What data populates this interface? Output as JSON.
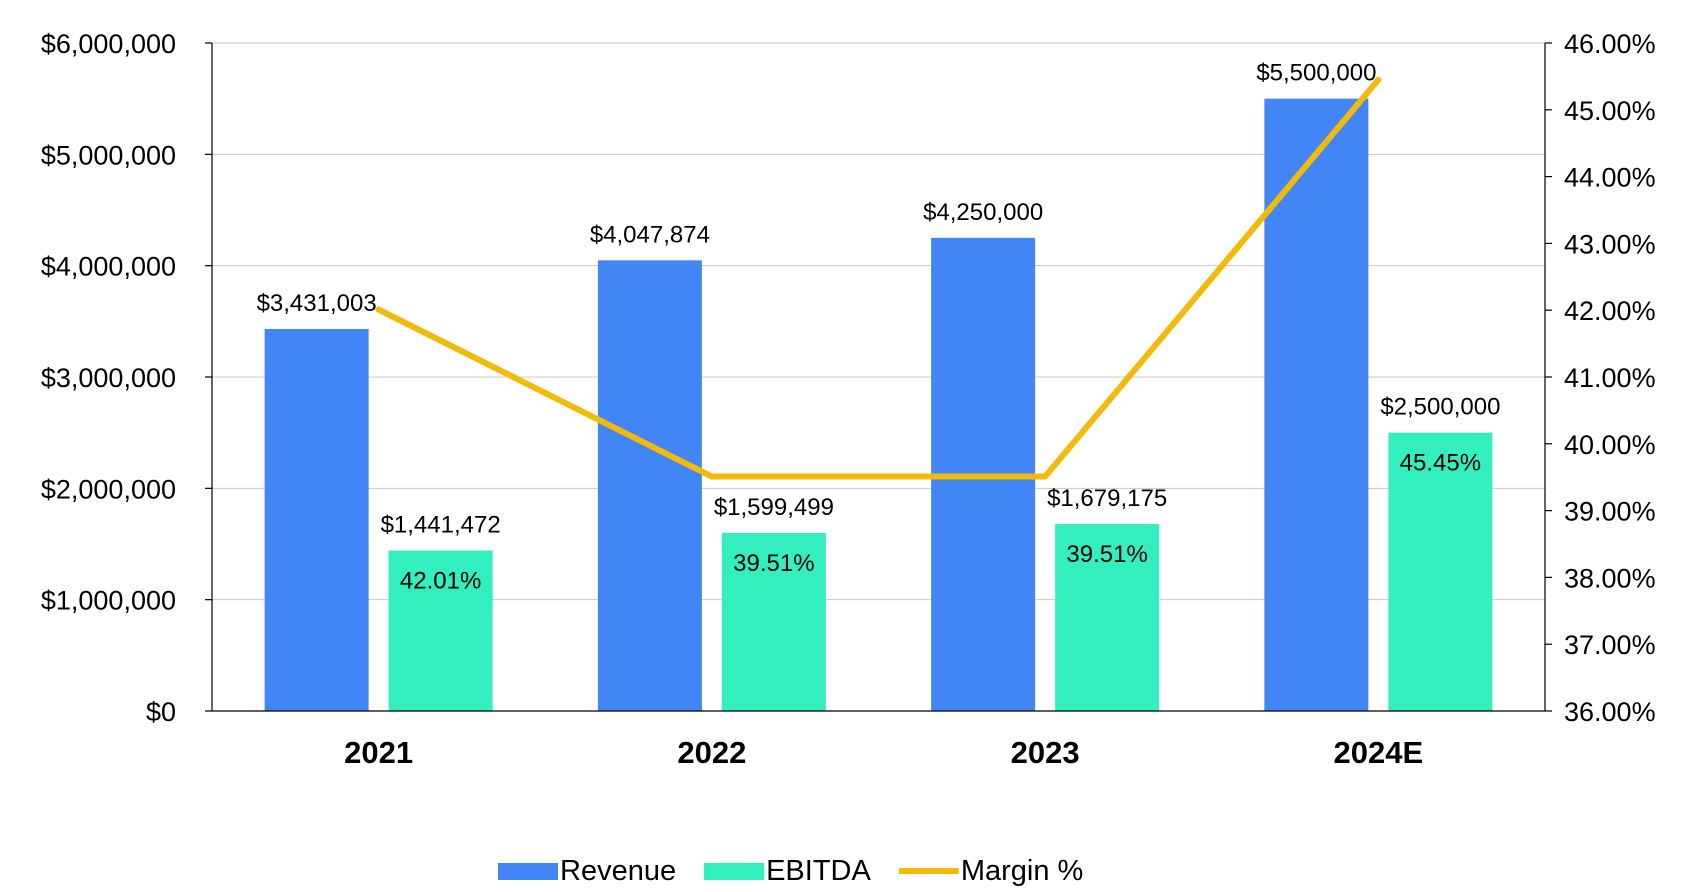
{
  "chart_data": {
    "type": "bar",
    "categories": [
      "2021",
      "2022",
      "2023",
      "2024E"
    ],
    "series": [
      {
        "name": "Revenue",
        "type": "bar",
        "axis": "left",
        "color": "#4285F4",
        "values": [
          3431003,
          4047874,
          4250000,
          5500000
        ],
        "labels": [
          "$3,431,003",
          "$4,047,874",
          "$4,250,000",
          "$5,500,000"
        ]
      },
      {
        "name": "EBITDA",
        "type": "bar",
        "axis": "left",
        "color": "#33EFC0",
        "values": [
          1441472,
          1599499,
          1679175,
          2500000
        ],
        "labels": [
          "$1,441,472",
          "$1,599,499",
          "$1,679,175",
          "$2,500,000"
        ]
      },
      {
        "name": "Margin %",
        "type": "line",
        "axis": "right",
        "color": "#F4BA0A",
        "values": [
          42.01,
          39.51,
          39.51,
          45.45
        ],
        "labels": [
          "42.01%",
          "39.51%",
          "39.51%",
          "45.45%"
        ]
      }
    ],
    "y_left": {
      "min": 0,
      "max": 6000000,
      "ticks": [
        {
          "value": 0,
          "label": "$0"
        },
        {
          "value": 1000000,
          "label": "$1,000,000"
        },
        {
          "value": 2000000,
          "label": "$2,000,000"
        },
        {
          "value": 3000000,
          "label": "$3,000,000"
        },
        {
          "value": 4000000,
          "label": "$4,000,000"
        },
        {
          "value": 5000000,
          "label": "$5,000,000"
        },
        {
          "value": 6000000,
          "label": "$6,000,000"
        }
      ]
    },
    "y_right": {
      "min": 36,
      "max": 46,
      "ticks": [
        {
          "value": 36,
          "label": "36.00%"
        },
        {
          "value": 37,
          "label": "37.00%"
        },
        {
          "value": 38,
          "label": "38.00%"
        },
        {
          "value": 39,
          "label": "39.00%"
        },
        {
          "value": 40,
          "label": "40.00%"
        },
        {
          "value": 41,
          "label": "41.00%"
        },
        {
          "value": 42,
          "label": "42.00%"
        },
        {
          "value": 43,
          "label": "43.00%"
        },
        {
          "value": 44,
          "label": "44.00%"
        },
        {
          "value": 45,
          "label": "45.00%"
        },
        {
          "value": 46,
          "label": "46.00%"
        }
      ]
    },
    "title": "",
    "xlabel": "",
    "ylabel": "",
    "grid": true,
    "legend": "bottom"
  }
}
